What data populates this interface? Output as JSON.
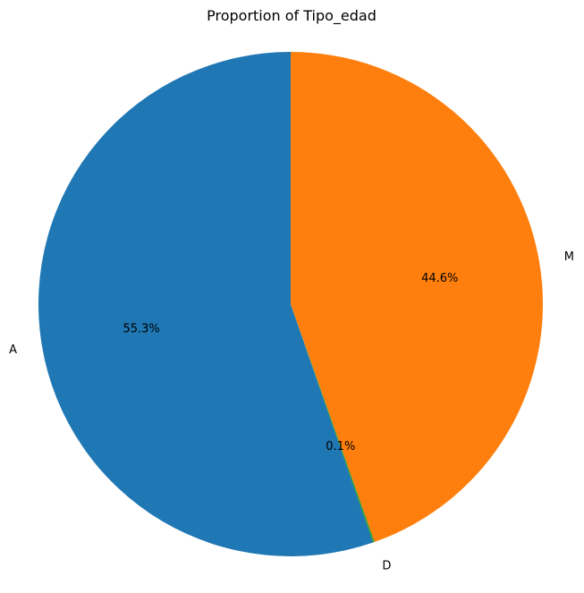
{
  "chart_data": {
    "type": "pie",
    "title": "Proportion of Tipo_edad",
    "start_angle_deg": 90,
    "direction": "counterclockwise",
    "slices": [
      {
        "label": "A",
        "value": 55.3,
        "display": "55.3%",
        "color": "#1f77b4"
      },
      {
        "label": "D",
        "value": 0.1,
        "display": "0.1%",
        "color": "#2ca02c"
      },
      {
        "label": "M",
        "value": 44.6,
        "display": "44.6%",
        "color": "#ff7f0e"
      }
    ]
  }
}
